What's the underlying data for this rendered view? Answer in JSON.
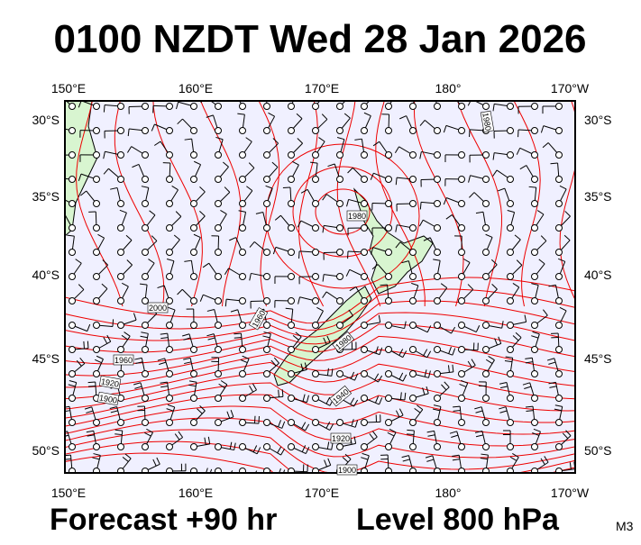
{
  "header": {
    "title": "0100 NZDT Wed 28 Jan 2026"
  },
  "map": {
    "lon_labels": [
      "150°E",
      "160°E",
      "170°E",
      "180°",
      "170°W"
    ],
    "lat_labels": [
      "30°S",
      "35°S",
      "40°S",
      "45°S",
      "50°S"
    ],
    "contour_labels": [
      "1980",
      "1980",
      "2000",
      "1960",
      "1960",
      "1920",
      "1900",
      "1980",
      "1940",
      "1920",
      "1900"
    ]
  },
  "footer": {
    "forecast": "Forecast +90 hr",
    "level": "Level 800 hPa",
    "code": "M3"
  }
}
